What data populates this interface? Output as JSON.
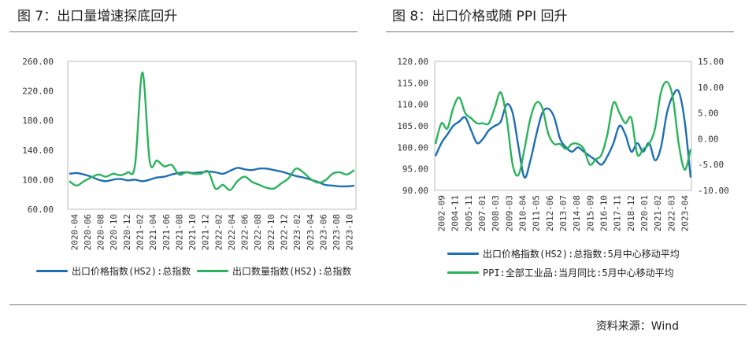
{
  "source": "资料来源：Wind",
  "colors": {
    "blue": "#1f6fb2",
    "green": "#2bb35b",
    "axis": "#555555",
    "frame": "#bbbbbb"
  },
  "chart_data": [
    {
      "type": "line",
      "title": "图 7：出口量增速探底回升",
      "x_tick_labels": [
        "2020-04",
        "2020-06",
        "2020-08",
        "2020-10",
        "2020-12",
        "2021-02",
        "2021-04",
        "2021-06",
        "2021-08",
        "2021-10",
        "2021-12",
        "2022-02",
        "2022-04",
        "2022-06",
        "2022-08",
        "2022-10",
        "2022-12",
        "2023-02",
        "2023-04",
        "2023-06",
        "2023-08",
        "2023-10"
      ],
      "ylim": [
        60,
        260
      ],
      "y_ticks": [
        "260.00",
        "220.00",
        "180.00",
        "140.00",
        "100.00",
        "60.00"
      ],
      "y_tick_values": [
        260,
        220,
        180,
        140,
        100,
        60
      ],
      "series": [
        {
          "name": "出口价格指数(HS2):总指数",
          "color": "#1f6fb2",
          "values": [
            108,
            109,
            107,
            104,
            100,
            98,
            100,
            101,
            99,
            100,
            98,
            100,
            103,
            104,
            107,
            109,
            110,
            109,
            110,
            111,
            110,
            108,
            112,
            116,
            114,
            113,
            115,
            115,
            113,
            111,
            108,
            105,
            103,
            100,
            97,
            93,
            92,
            91,
            91,
            92
          ]
        },
        {
          "name": "出口数量指数(HS2):总指数",
          "color": "#2bb35b",
          "values": [
            98,
            92,
            98,
            103,
            107,
            104,
            108,
            106,
            110,
            120,
            245,
            125,
            126,
            118,
            120,
            107,
            110,
            108,
            108,
            111,
            88,
            93,
            86,
            98,
            104,
            97,
            93,
            89,
            88,
            95,
            102,
            115,
            110,
            101,
            96,
            99,
            108,
            110,
            107,
            113
          ]
        }
      ]
    },
    {
      "type": "line",
      "title": "图 8：出口价格或随 PPI 回升",
      "x_tick_labels": [
        "2002-09",
        "2004-11",
        "2005-11",
        "2007-01",
        "2008-03",
        "2009-03",
        "2010-04",
        "2011-05",
        "2012-06",
        "2013-07",
        "2014-08",
        "2015-09",
        "2016-10",
        "2017-11",
        "2018-12",
        "2020-01",
        "2021-02",
        "2022-03",
        "2023-04"
      ],
      "ylim_left": [
        90,
        120
      ],
      "ylim_right": [
        -10,
        15
      ],
      "y_ticks_left": [
        "120.00",
        "115.00",
        "110.00",
        "105.00",
        "100.00",
        "95.00",
        "90.00"
      ],
      "y_tick_values_left": [
        120,
        115,
        110,
        105,
        100,
        95,
        90
      ],
      "y_ticks_right": [
        "15.00",
        "10.00",
        "5.00",
        "0.00",
        "-5.00",
        "-10.00"
      ],
      "y_tick_values_right": [
        15,
        10,
        5,
        0,
        -5,
        -10
      ],
      "series": [
        {
          "name": "出口价格指数(HS2):总指数:5月中心移动平均",
          "axis": "left",
          "color": "#1f6fb2",
          "values": [
            98,
            101,
            103,
            105,
            106,
            107,
            104,
            101,
            102,
            104,
            105,
            106,
            110,
            108,
            100,
            93,
            97,
            103,
            108,
            109,
            107,
            102,
            100,
            99,
            100,
            99,
            98,
            97,
            96,
            98,
            101,
            105,
            103,
            99,
            101,
            99,
            101,
            97,
            100,
            108,
            112,
            113,
            106,
            93
          ]
        },
        {
          "name": "PPI:全部工业品:当月同比:5月中心移动平均",
          "axis": "right",
          "color": "#2bb35b",
          "values": [
            -1,
            3,
            2,
            6,
            8,
            5,
            4,
            3,
            3,
            3,
            6,
            9,
            4,
            -5,
            -7,
            -2,
            4,
            7,
            6,
            1,
            -1,
            -1,
            -2,
            -1,
            -1,
            -2,
            -5,
            -4,
            -3,
            1,
            7,
            5,
            3,
            4,
            -3,
            -2,
            -1,
            2,
            9,
            11,
            8,
            -1,
            -6,
            -2
          ]
        }
      ]
    }
  ]
}
